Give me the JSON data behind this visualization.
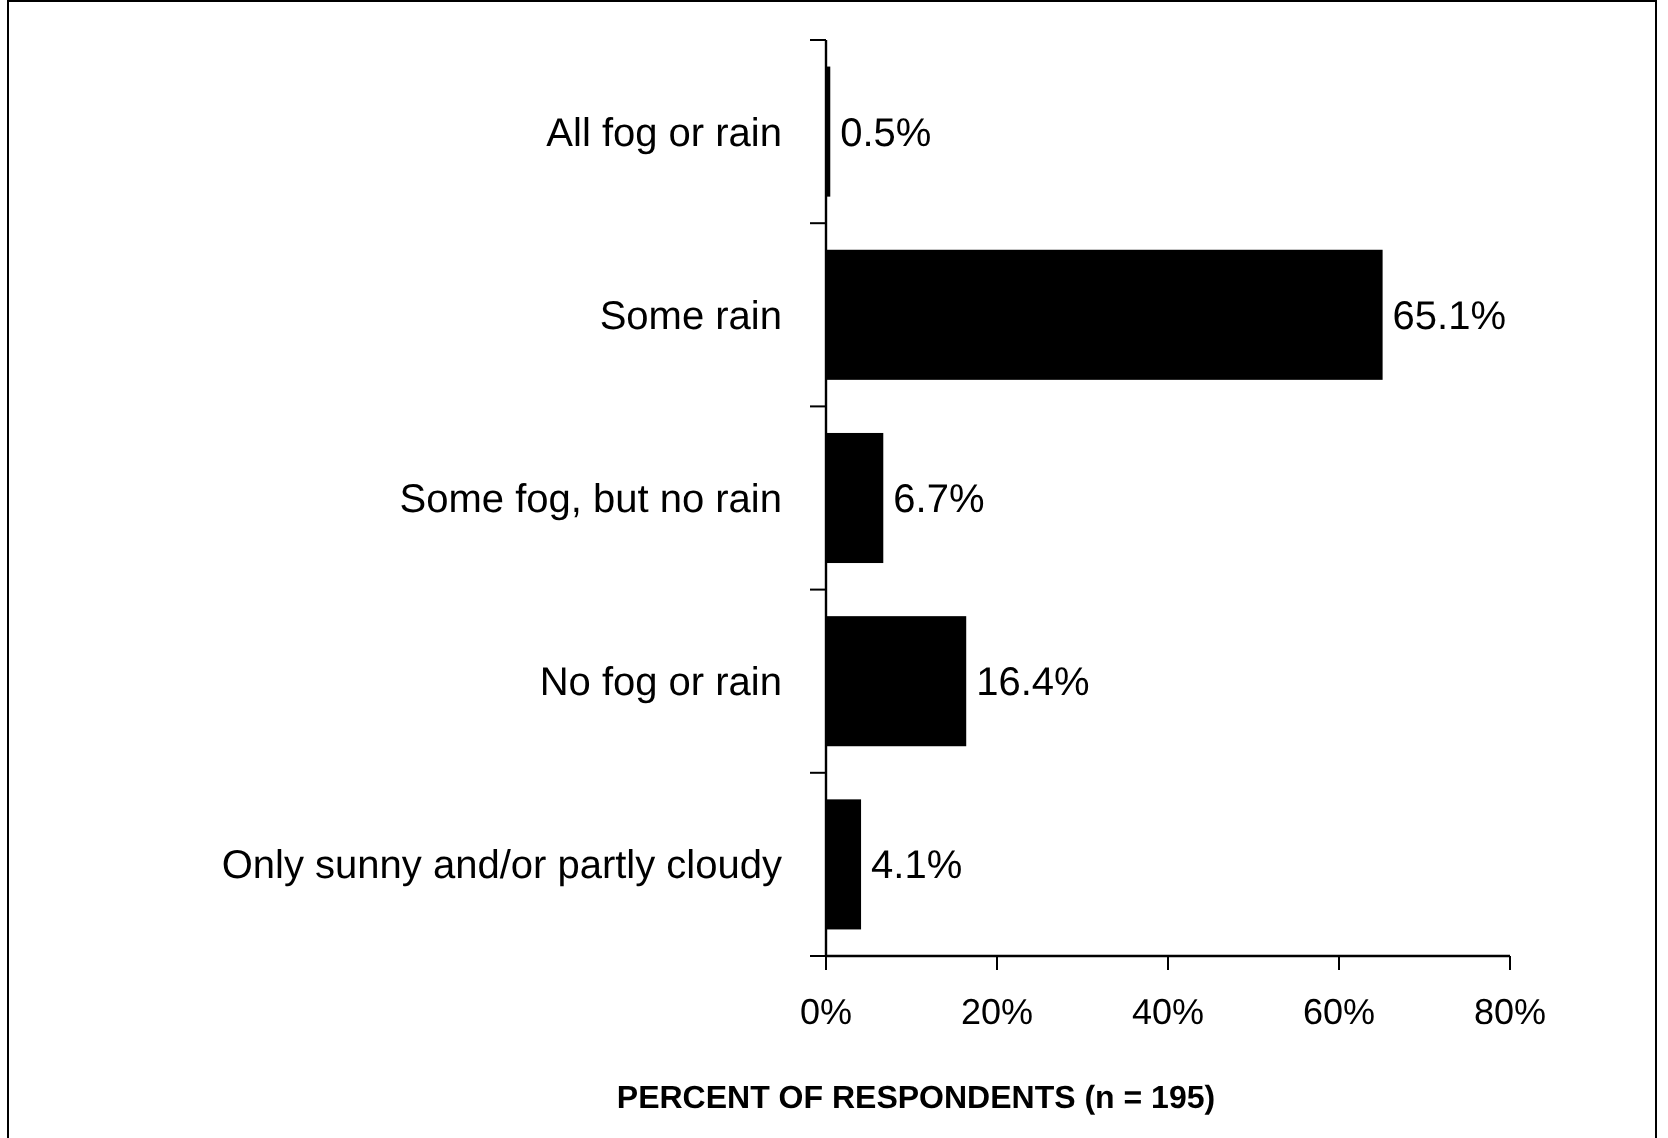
{
  "chart_data": {
    "type": "bar",
    "orientation": "horizontal",
    "xlabel": "PERCENT OF RESPONDENTS (n = 195)",
    "categories": [
      "All fog or rain",
      "Some rain",
      "Some fog, but no rain",
      "No fog or rain",
      "Only sunny and/or partly cloudy"
    ],
    "values": [
      0.5,
      65.1,
      6.7,
      16.4,
      4.1
    ],
    "value_labels": [
      "0.5%",
      "65.1%",
      "6.7%",
      "16.4%",
      "4.1%"
    ],
    "color": "#000000",
    "xlim": [
      0,
      80
    ],
    "xticks": [
      {
        "value": 0,
        "label": "0%"
      },
      {
        "value": 20,
        "label": "20%"
      },
      {
        "value": 40,
        "label": "40%"
      },
      {
        "value": 60,
        "label": "60%"
      },
      {
        "value": 80,
        "label": "80%"
      }
    ]
  }
}
